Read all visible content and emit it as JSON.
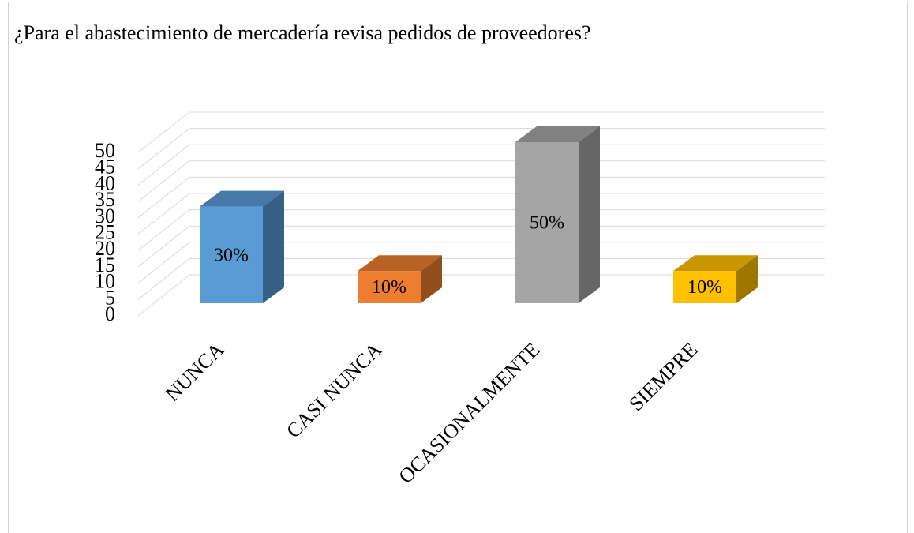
{
  "chart_data": {
    "type": "bar3d",
    "title": "¿Para el abastecimiento de mercadería revisa pedidos de proveedores?",
    "categories": [
      "NUNCA",
      "CASI NUNCA",
      "OCASIONALMENTE",
      "SIEMPRE"
    ],
    "values": [
      30,
      10,
      50,
      10
    ],
    "value_labels": [
      "30%",
      "10%",
      "50%",
      "10%"
    ],
    "colors": [
      "#5b9bd5",
      "#ed7d31",
      "#a5a5a5",
      "#ffc000"
    ],
    "ylim": [
      0,
      50
    ],
    "yticks": [
      0,
      5,
      10,
      15,
      20,
      25,
      30,
      35,
      40,
      45,
      50
    ],
    "grid": true
  }
}
